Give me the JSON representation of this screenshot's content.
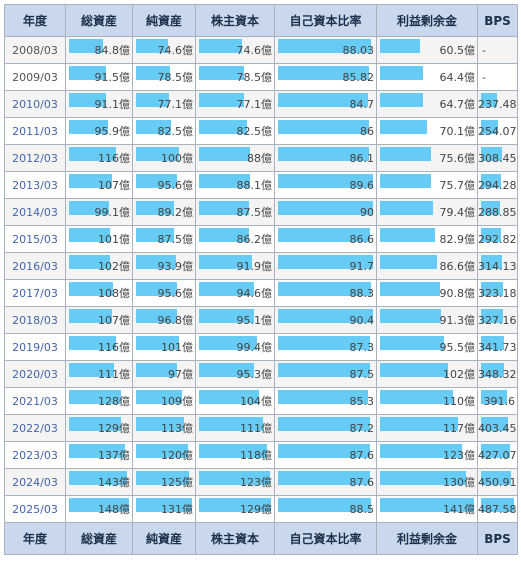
{
  "headers": [
    "年度",
    "総資産",
    "純資産",
    "株主資本",
    "自己資本比率",
    "利益剰余金",
    "BPS"
  ],
  "colors": {
    "header_bg": "#c9d8ec",
    "bar": "#66ccf5",
    "year_link": "#4466aa",
    "border": "#aab2c0"
  },
  "rows": [
    {
      "year": "2008/03",
      "total": "84.8億",
      "net": "74.6億",
      "equity": "74.6億",
      "ratio": "88.03",
      "retained": "60.5億",
      "bps": "-",
      "bars": [
        0.57,
        0.57,
        0.6,
        0.98,
        0.43,
        0
      ]
    },
    {
      "year": "2009/03",
      "total": "91.5億",
      "net": "78.5億",
      "equity": "78.5億",
      "ratio": "85.82",
      "retained": "64.4億",
      "bps": "-",
      "bars": [
        0.62,
        0.6,
        0.63,
        0.96,
        0.46,
        0
      ]
    },
    {
      "year": "2010/03",
      "total": "91.1億",
      "net": "77.1億",
      "equity": "77.1億",
      "ratio": "84.7",
      "retained": "64.7億",
      "bps": "237.48",
      "bars": [
        0.62,
        0.59,
        0.62,
        0.95,
        0.46,
        0.49
      ]
    },
    {
      "year": "2011/03",
      "total": "95.9億",
      "net": "82.5億",
      "equity": "82.5億",
      "ratio": "86",
      "retained": "70.1億",
      "bps": "254.07",
      "bars": [
        0.65,
        0.63,
        0.66,
        0.96,
        0.5,
        0.52
      ]
    },
    {
      "year": "2012/03",
      "total": "116億",
      "net": "100億",
      "equity": "88億",
      "ratio": "86.1",
      "retained": "75.6億",
      "bps": "308.45",
      "bars": [
        0.78,
        0.76,
        0.71,
        0.96,
        0.54,
        0.63
      ]
    },
    {
      "year": "2013/03",
      "total": "107億",
      "net": "95.6億",
      "equity": "88.1億",
      "ratio": "89.6",
      "retained": "75.7億",
      "bps": "294.28",
      "bars": [
        0.72,
        0.73,
        0.71,
        1.0,
        0.54,
        0.6
      ]
    },
    {
      "year": "2014/03",
      "total": "99.1億",
      "net": "89.2億",
      "equity": "87.5億",
      "ratio": "90",
      "retained": "79.4億",
      "bps": "288.85",
      "bars": [
        0.67,
        0.68,
        0.7,
        1.0,
        0.56,
        0.59
      ]
    },
    {
      "year": "2015/03",
      "total": "101億",
      "net": "87.5億",
      "equity": "86.2億",
      "ratio": "86.6",
      "retained": "82.9億",
      "bps": "292.82",
      "bars": [
        0.68,
        0.67,
        0.69,
        0.97,
        0.59,
        0.6
      ]
    },
    {
      "year": "2016/03",
      "total": "102億",
      "net": "93.9億",
      "equity": "91.9億",
      "ratio": "91.7",
      "retained": "86.6億",
      "bps": "314.13",
      "bars": [
        0.69,
        0.72,
        0.74,
        1.0,
        0.61,
        0.64
      ]
    },
    {
      "year": "2017/03",
      "total": "108億",
      "net": "95.6億",
      "equity": "94.6億",
      "ratio": "88.3",
      "retained": "90.8億",
      "bps": "323.18",
      "bars": [
        0.73,
        0.73,
        0.76,
        0.98,
        0.64,
        0.66
      ]
    },
    {
      "year": "2018/03",
      "total": "107億",
      "net": "96.8億",
      "equity": "95.1億",
      "ratio": "90.4",
      "retained": "91.3億",
      "bps": "327.16",
      "bars": [
        0.72,
        0.74,
        0.76,
        1.0,
        0.65,
        0.67
      ]
    },
    {
      "year": "2019/03",
      "total": "116億",
      "net": "101億",
      "equity": "99.4億",
      "ratio": "87.3",
      "retained": "95.5億",
      "bps": "341.73",
      "bars": [
        0.78,
        0.77,
        0.8,
        0.97,
        0.68,
        0.7
      ]
    },
    {
      "year": "2020/03",
      "total": "111億",
      "net": "97億",
      "equity": "95.3億",
      "ratio": "87.5",
      "retained": "102億",
      "bps": "348.32",
      "bars": [
        0.75,
        0.74,
        0.76,
        0.97,
        0.72,
        0.71
      ]
    },
    {
      "year": "2021/03",
      "total": "128億",
      "net": "109億",
      "equity": "104億",
      "ratio": "85.3",
      "retained": "110億",
      "bps": "391.6",
      "bars": [
        0.86,
        0.83,
        0.83,
        0.95,
        0.78,
        0.8
      ]
    },
    {
      "year": "2022/03",
      "total": "129億",
      "net": "113億",
      "equity": "111億",
      "ratio": "87.2",
      "retained": "117億",
      "bps": "403.45",
      "bars": [
        0.87,
        0.86,
        0.89,
        0.97,
        0.83,
        0.83
      ]
    },
    {
      "year": "2023/03",
      "total": "137億",
      "net": "120億",
      "equity": "118億",
      "ratio": "87.6",
      "retained": "123億",
      "bps": "427.07",
      "bars": [
        0.93,
        0.92,
        0.94,
        0.97,
        0.87,
        0.88
      ]
    },
    {
      "year": "2024/03",
      "total": "143億",
      "net": "125億",
      "equity": "123億",
      "ratio": "87.6",
      "retained": "130億",
      "bps": "450.91",
      "bars": [
        0.97,
        0.95,
        0.98,
        0.97,
        0.92,
        0.92
      ]
    },
    {
      "year": "2025/03",
      "total": "148億",
      "net": "131億",
      "equity": "129億",
      "ratio": "88.5",
      "retained": "141億",
      "bps": "487.58",
      "bars": [
        1.0,
        1.0,
        1.0,
        0.98,
        1.0,
        1.0
      ]
    }
  ]
}
